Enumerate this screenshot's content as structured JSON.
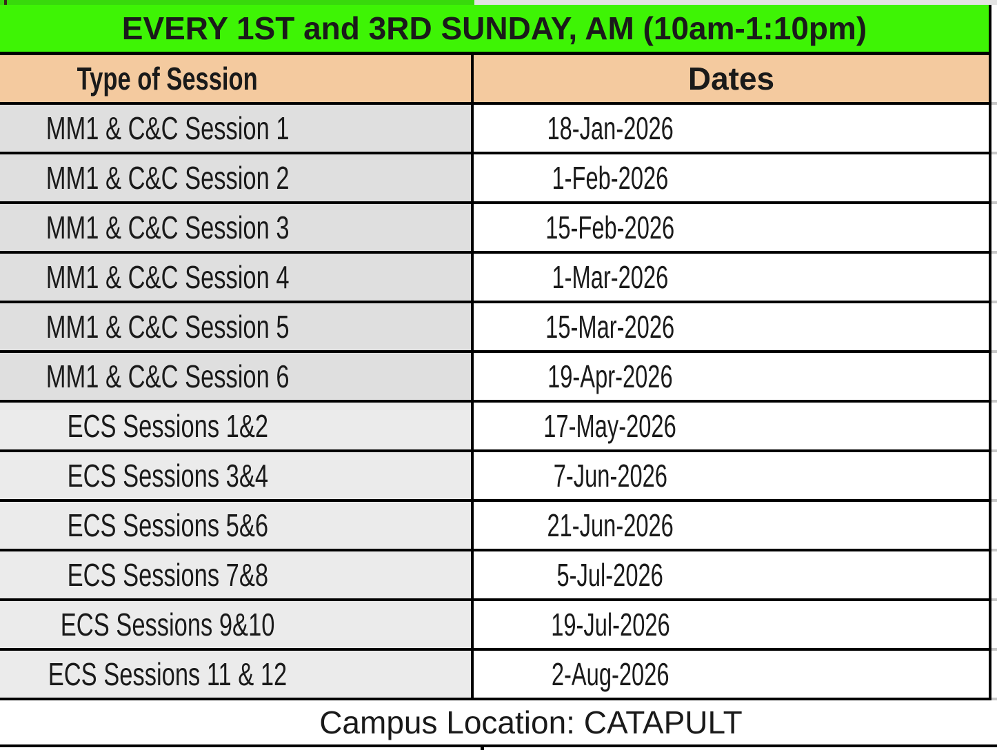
{
  "title": "EVERY 1ST and 3RD SUNDAY, AM (10am-1:10pm)",
  "header": {
    "type_col": "Type of Session",
    "dates_col": "Dates"
  },
  "rows": [
    {
      "session": "MM1 & C&C Session 1",
      "date": "18-Jan-2026",
      "group": "mm1"
    },
    {
      "session": "MM1 & C&C Session 2",
      "date": "1-Feb-2026",
      "group": "mm1"
    },
    {
      "session": "MM1 & C&C Session 3",
      "date": "15-Feb-2026",
      "group": "mm1"
    },
    {
      "session": "MM1 & C&C Session 4",
      "date": "1-Mar-2026",
      "group": "mm1"
    },
    {
      "session": "MM1 & C&C Session 5",
      "date": "15-Mar-2026",
      "group": "mm1"
    },
    {
      "session": "MM1 & C&C Session 6",
      "date": "19-Apr-2026",
      "group": "mm1"
    },
    {
      "session": "ECS Sessions 1&2",
      "date": "17-May-2026",
      "group": "ecs"
    },
    {
      "session": "ECS Sessions 3&4",
      "date": "7-Jun-2026",
      "group": "ecs"
    },
    {
      "session": "ECS Sessions 5&6",
      "date": "21-Jun-2026",
      "group": "ecs"
    },
    {
      "session": "ECS Sessions 7&8",
      "date": "5-Jul-2026",
      "group": "ecs"
    },
    {
      "session": "ECS Sessions 9&10",
      "date": "19-Jul-2026",
      "group": "ecs"
    },
    {
      "session": "ECS Sessions 11 & 12",
      "date": "2-Aug-2026",
      "group": "ecs"
    }
  ],
  "footer": "Campus Location: CATAPULT",
  "colors": {
    "title_bg": "#3ef405",
    "title_bg_dark": "#38d90c",
    "header_bg": "#f4ca9f",
    "mm1_row_bg": "#dfdfdf",
    "ecs_row_bg": "#ebebeb",
    "date_cell_bg": "#ffffff",
    "border": "#000000",
    "text": "#1a1a1a",
    "gridline_nub": "#c7c7c7"
  }
}
